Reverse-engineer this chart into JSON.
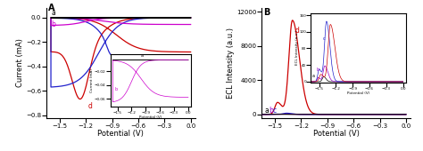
{
  "panel_A": {
    "title": "A",
    "xlabel": "Potential (V)",
    "ylabel": "Current (mA)",
    "xlim": [
      -1.65,
      0.05
    ],
    "ylim": [
      -0.82,
      0.08
    ],
    "yticks": [
      0.0,
      -0.2,
      -0.4,
      -0.6,
      -0.8
    ],
    "xticks": [
      -1.5,
      -1.2,
      -0.9,
      -0.6,
      -0.3,
      0.0
    ],
    "curves": {
      "a_color": "#000000",
      "b_color": "#cc00cc",
      "c_color": "#2222cc",
      "d_color": "#cc0000"
    }
  },
  "panel_B": {
    "title": "B",
    "xlabel": "Potential (V)",
    "ylabel": "ECL Intensity (a.u.)",
    "xlim": [
      -1.65,
      0.05
    ],
    "ylim": [
      -400,
      12500
    ],
    "yticks": [
      0,
      4000,
      8000,
      12000
    ],
    "xticks": [
      -1.5,
      -1.2,
      -0.9,
      -0.6,
      -0.3,
      0.0
    ],
    "curves": {
      "a_color": "#000000",
      "b_color": "#9900cc",
      "c_color": "#2222cc",
      "d_color": "#cc0000"
    }
  }
}
